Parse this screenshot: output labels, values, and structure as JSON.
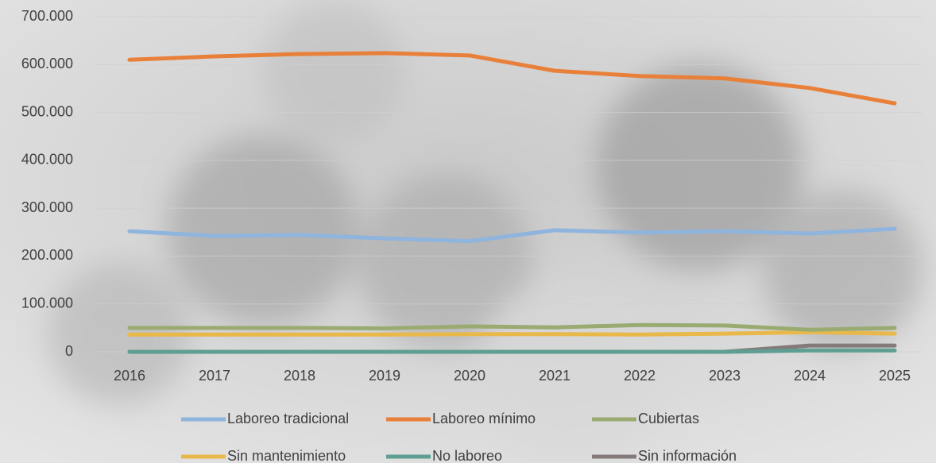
{
  "chart_data": {
    "type": "line",
    "categories": [
      "2016",
      "2017",
      "2018",
      "2019",
      "2020",
      "2021",
      "2022",
      "2023",
      "2024",
      "2025"
    ],
    "series": [
      {
        "name": "Laboreo tradicional",
        "color": "#8fb4dd",
        "values": [
          252000,
          242000,
          244000,
          237000,
          231000,
          254000,
          249000,
          252000,
          247000,
          257000
        ]
      },
      {
        "name": "Laboreo mínimo",
        "color": "#e8803a",
        "values": [
          610000,
          617000,
          622000,
          624000,
          619000,
          587000,
          576000,
          571000,
          551000,
          519000
        ]
      },
      {
        "name": "Cubiertas",
        "color": "#9aab72",
        "values": [
          50000,
          50000,
          50000,
          49000,
          53000,
          51000,
          56000,
          55000,
          46000,
          50000
        ]
      },
      {
        "name": "Sin mantenimiento",
        "color": "#e9b84a",
        "values": [
          36000,
          36000,
          36000,
          36000,
          37000,
          37000,
          36000,
          38000,
          41000,
          38000
        ]
      },
      {
        "name": "No laboreo",
        "color": "#5f9e92",
        "values": [
          0,
          0,
          0,
          0,
          0,
          0,
          0,
          0,
          3000,
          3000
        ]
      },
      {
        "name": "Sin información",
        "color": "#857a7a",
        "values": [
          0,
          0,
          0,
          0,
          0,
          0,
          0,
          0,
          13000,
          13000
        ]
      }
    ],
    "ylim": [
      0,
      700000
    ],
    "yticks": [
      0,
      {
        "value": 100000,
        "label": "100.000"
      },
      {
        "value": 200000,
        "label": "200.000"
      },
      {
        "value": 300000,
        "label": "300.000"
      },
      {
        "value": 400000,
        "label": "400.000"
      },
      {
        "value": 500000,
        "label": "500.000"
      },
      {
        "value": 600000,
        "label": "600.000"
      },
      {
        "value": 700000,
        "label": "700.000"
      }
    ],
    "grid": true
  }
}
